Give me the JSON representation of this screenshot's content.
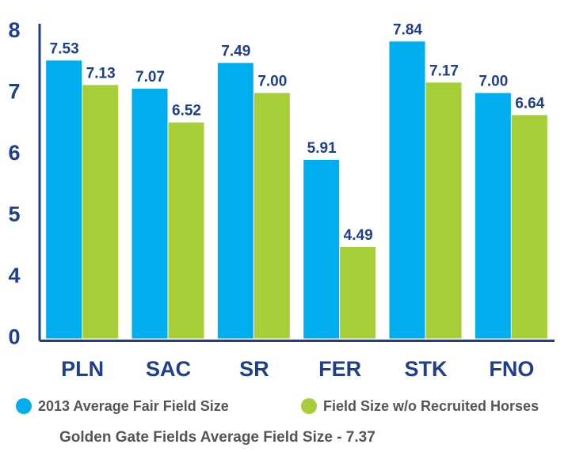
{
  "chart_data": {
    "type": "bar",
    "categories": [
      "PLN",
      "SAC",
      "SR",
      "FER",
      "STK",
      "FNO"
    ],
    "series": [
      {
        "name": "2013 Average Fair Field Size",
        "color": "#00aeef",
        "values": [
          7.53,
          7.07,
          7.49,
          5.91,
          7.84,
          7.0
        ],
        "value_labels": [
          "7.53",
          "7.07",
          "7.49",
          "5.91",
          "7.84",
          "7.00"
        ]
      },
      {
        "name": "Field Size w/o Recruited Horses",
        "color": "#a6ce39",
        "values": [
          7.13,
          6.52,
          7.0,
          4.49,
          7.17,
          6.64
        ],
        "value_labels": [
          "7.13",
          "6.52",
          "7.00",
          "4.49",
          "7.17",
          "6.64"
        ]
      }
    ],
    "ylim": [
      0,
      8.2
    ],
    "yticks": [
      0,
      4,
      5,
      6,
      7,
      8
    ],
    "axis_break": [
      0,
      3
    ],
    "grid": false,
    "annotation": "Golden Gate Fields Average Field Size - 7.37"
  }
}
